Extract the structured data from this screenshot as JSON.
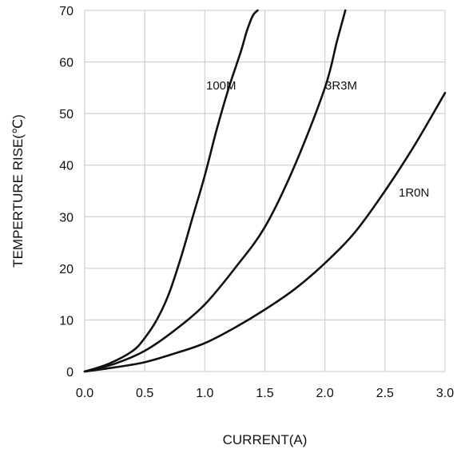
{
  "chart_data": {
    "type": "line",
    "title": "",
    "xlabel": "CURRENT(A)",
    "ylabel": "TEMPERTURE RISE(℃)",
    "xlim": [
      0,
      3.0
    ],
    "ylim": [
      0,
      70
    ],
    "x_ticks": [
      "0.0",
      "0.5",
      "1.0",
      "1.5",
      "2.0",
      "2.5",
      "3.0"
    ],
    "y_ticks": [
      "0",
      "10",
      "20",
      "30",
      "40",
      "50",
      "60",
      "70"
    ],
    "grid": true,
    "series": [
      {
        "name": "100M",
        "x": [
          0,
          0.2,
          0.4,
          0.5,
          0.6,
          0.7,
          0.8,
          0.9,
          1.0,
          1.1,
          1.2,
          1.3,
          1.35,
          1.4,
          1.44
        ],
        "y": [
          0,
          1.5,
          4,
          6.5,
          10,
          15,
          22,
          30,
          38,
          47,
          55,
          62,
          66,
          69,
          70
        ]
      },
      {
        "name": "3R3M",
        "x": [
          0,
          0.25,
          0.5,
          0.75,
          1.0,
          1.25,
          1.5,
          1.75,
          2.0,
          2.1,
          2.17
        ],
        "y": [
          0,
          1.5,
          4,
          8,
          13,
          20,
          28,
          40,
          55,
          64,
          70
        ]
      },
      {
        "name": "1R0N",
        "x": [
          0,
          0.25,
          0.5,
          0.75,
          1.0,
          1.25,
          1.5,
          1.75,
          2.0,
          2.25,
          2.5,
          2.75,
          3.0
        ],
        "y": [
          0,
          0.8,
          1.8,
          3.5,
          5.5,
          8.5,
          12,
          16,
          21,
          27,
          35,
          44,
          54
        ]
      }
    ]
  }
}
